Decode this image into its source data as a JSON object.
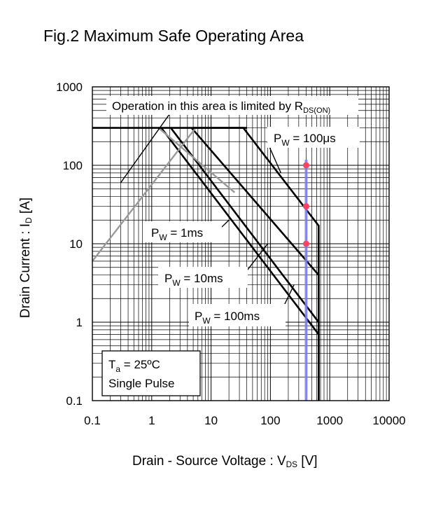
{
  "title": "Fig.2 Maximum Safe Operating Area",
  "xlabel": {
    "main": "Drain - Source Voltage : V",
    "sub": "DS",
    "unit": " [V]"
  },
  "ylabel": {
    "main": "Drain Current : I",
    "sub": "D",
    "unit": " [A]"
  },
  "chart_data": {
    "type": "line",
    "x_scale": "log",
    "y_scale": "log",
    "xlim": [
      0.1,
      10000
    ],
    "ylim": [
      0.1,
      1000
    ],
    "x_ticks": [
      "0.1",
      "1",
      "10",
      "100",
      "1000",
      "10000"
    ],
    "y_ticks": [
      "0.1",
      "1",
      "10",
      "100",
      "1000"
    ],
    "grid": true,
    "series": [
      {
        "name": "PW = 100μs",
        "color": "#000000",
        "x": [
          5,
          35,
          650,
          650
        ],
        "y": [
          300,
          300,
          17,
          0.1
        ]
      },
      {
        "name": "PW = 1ms",
        "color": "#000000",
        "x": [
          4.7,
          650,
          650
        ],
        "y": [
          300,
          4,
          0.1
        ]
      },
      {
        "name": "PW = 10ms",
        "color": "#000000",
        "x": [
          2.1,
          650,
          650
        ],
        "y": [
          300,
          1,
          0.1
        ]
      },
      {
        "name": "PW = 100ms",
        "color": "#000000",
        "x": [
          1.45,
          650,
          650
        ],
        "y": [
          300,
          0.7,
          0.1
        ]
      },
      {
        "name": "",
        "color": "#999999",
        "x": [
          0.1,
          5.5
        ],
        "y": [
          6,
          300
        ]
      },
      {
        "name": "",
        "color": "#999999",
        "x": [
          1.3,
          25
        ],
        "y": [
          300,
          45
        ]
      },
      {
        "name": "",
        "color": "#000000",
        "x": [
          0.1,
          40
        ],
        "y": [
          300,
          300
        ]
      }
    ],
    "marker_line": {
      "color": "#8080ff",
      "x": 400
    },
    "points": [
      {
        "x": 400,
        "y": 100
      },
      {
        "x": 400,
        "y": 30
      },
      {
        "x": 400,
        "y": 10
      }
    ],
    "point_color": "#ff4060",
    "annotations": {
      "rds": {
        "main": "Operation in this area is limited by R",
        "sub": "DS(ON)"
      },
      "pw100us": {
        "main": "P",
        "sub": "W",
        "rest": " = 100μs"
      },
      "pw1ms": {
        "main": "P",
        "sub": "W",
        "rest": " = 1ms"
      },
      "pw10ms": {
        "main": "P",
        "sub": "W",
        "rest": " = 10ms"
      },
      "pw100ms": {
        "main": "P",
        "sub": "W",
        "rest": " = 100ms"
      },
      "cond": {
        "ta_main": "T",
        "ta_sub": "a",
        "ta_rest": " = 25ºC",
        "line2": "Single Pulse"
      }
    }
  }
}
